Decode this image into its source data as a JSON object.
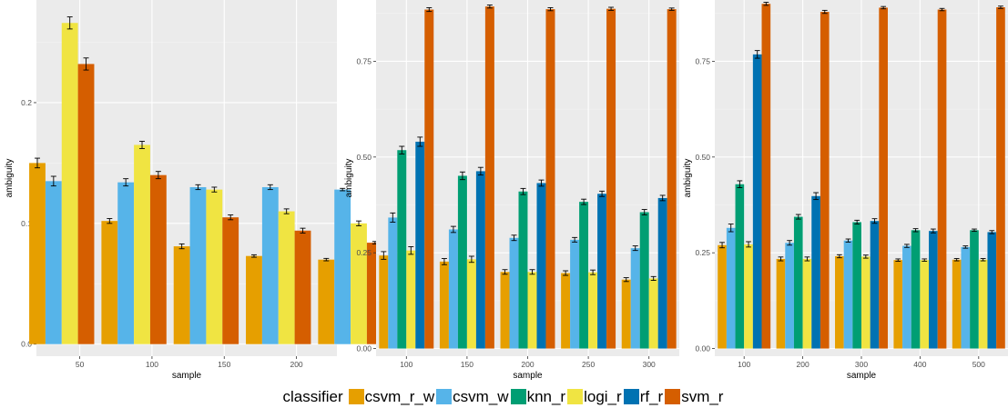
{
  "colors": {
    "csvm_r_w": "#E69F00",
    "csvm_w": "#56B4E9",
    "knn_r": "#009E73",
    "logi_r": "#F0E442",
    "rf_r": "#0072B2",
    "svm_r": "#D55E00"
  },
  "legend": {
    "title": "classifier",
    "items": [
      {
        "key": "csvm_r_w",
        "label": "csvm_r_w"
      },
      {
        "key": "csvm_w",
        "label": "csvm_w"
      },
      {
        "key": "knn_r",
        "label": "knn_r"
      },
      {
        "key": "logi_r",
        "label": "logi_r"
      },
      {
        "key": "rf_r",
        "label": "rf_r"
      },
      {
        "key": "svm_r",
        "label": "svm_r"
      }
    ]
  },
  "chart_data": [
    {
      "type": "bar",
      "xlabel": "sample",
      "ylabel": "ambiguity",
      "ylim": [
        -0.01,
        0.285
      ],
      "yticks": [
        0.0,
        0.1,
        0.2
      ],
      "ytick_labels": [
        "0.0",
        "0.1",
        "0.2"
      ],
      "categories": [
        37,
        62,
        87,
        112,
        137,
        162,
        187,
        212
      ],
      "xlim": [
        20,
        228
      ],
      "xticks": [
        50,
        100,
        150,
        200
      ],
      "grid": true,
      "series": [
        {
          "name": "csvm_r_w",
          "values": [
            0.15,
            0.102,
            0.081,
            0.073,
            0.07
          ],
          "x": [
            37,
            87,
            137,
            187,
            237
          ],
          "err": [
            0.004,
            0.002,
            0.002,
            0.001,
            0.001
          ]
        },
        {
          "name": "csvm_w",
          "values": [
            0.135,
            0.134,
            0.13,
            0.13,
            0.128
          ],
          "x": [
            37,
            87,
            137,
            187,
            237
          ],
          "err": [
            0.004,
            0.003,
            0.002,
            0.002,
            0.001
          ]
        },
        {
          "name": "logi_r",
          "values": [
            0.266,
            0.165,
            0.128,
            0.11,
            0.1
          ],
          "x": [
            37,
            87,
            137,
            187,
            237
          ],
          "err": [
            0.005,
            0.003,
            0.002,
            0.002,
            0.002
          ]
        },
        {
          "name": "svm_r",
          "values": [
            0.232,
            0.14,
            0.105,
            0.094,
            0.084
          ],
          "x": [
            37,
            87,
            137,
            187,
            237
          ],
          "err": [
            0.005,
            0.003,
            0.002,
            0.002,
            0.001
          ]
        }
      ],
      "groups": [
        {
          "x": 50,
          "bars": [
            [
              "csvm_r_w",
              0.15,
              0.004
            ],
            [
              "csvm_w",
              0.135,
              0.004
            ],
            [
              "logi_r",
              0.266,
              0.005
            ],
            [
              "svm_r",
              0.232,
              0.005
            ]
          ]
        },
        {
          "x": 100,
          "bars": [
            [
              "csvm_r_w",
              0.102,
              0.002
            ],
            [
              "csvm_w",
              0.134,
              0.003
            ],
            [
              "logi_r",
              0.165,
              0.003
            ],
            [
              "svm_r",
              0.14,
              0.003
            ]
          ]
        },
        {
          "x": 150,
          "bars": [
            [
              "csvm_r_w",
              0.081,
              0.002
            ],
            [
              "csvm_w",
              0.13,
              0.002
            ],
            [
              "logi_r",
              0.128,
              0.002
            ],
            [
              "svm_r",
              0.105,
              0.002
            ]
          ]
        },
        {
          "x": 200,
          "bars": [
            [
              "csvm_r_w",
              0.073,
              0.001
            ],
            [
              "csvm_w",
              0.13,
              0.002
            ],
            [
              "logi_r",
              0.11,
              0.002
            ],
            [
              "svm_r",
              0.094,
              0.002
            ]
          ]
        },
        {
          "x": 250,
          "bars": [
            [
              "csvm_r_w",
              0.07,
              0.001
            ],
            [
              "csvm_w",
              0.128,
              0.001
            ],
            [
              "logi_r",
              0.1,
              0.002
            ],
            [
              "svm_r",
              0.084,
              0.001
            ]
          ]
        }
      ],
      "group_offset": -12.5
    },
    {
      "type": "bar",
      "xlabel": "sample",
      "ylabel": "ambiguity",
      "ylim": [
        -0.02,
        0.91
      ],
      "yticks": [
        0.0,
        0.25,
        0.5,
        0.75
      ],
      "ytick_labels": [
        "0.00",
        "0.25",
        "0.50",
        "0.75"
      ],
      "xlim": [
        75,
        325
      ],
      "xticks": [
        100,
        150,
        200,
        250,
        300
      ],
      "grid": true,
      "groups": [
        {
          "x": 100,
          "bars": [
            [
              "csvm_r_w",
              0.243,
              0.01
            ],
            [
              "csvm_w",
              0.342,
              0.012
            ],
            [
              "knn_r",
              0.518,
              0.01
            ],
            [
              "logi_r",
              0.256,
              0.01
            ],
            [
              "rf_r",
              0.54,
              0.012
            ],
            [
              "svm_r",
              0.885,
              0.005
            ]
          ]
        },
        {
          "x": 150,
          "bars": [
            [
              "csvm_r_w",
              0.227,
              0.008
            ],
            [
              "csvm_w",
              0.311,
              0.008
            ],
            [
              "knn_r",
              0.451,
              0.01
            ],
            [
              "logi_r",
              0.233,
              0.008
            ],
            [
              "rf_r",
              0.463,
              0.01
            ],
            [
              "svm_r",
              0.893,
              0.004
            ]
          ]
        },
        {
          "x": 200,
          "bars": [
            [
              "csvm_r_w",
              0.2,
              0.006
            ],
            [
              "csvm_w",
              0.289,
              0.007
            ],
            [
              "knn_r",
              0.41,
              0.008
            ],
            [
              "logi_r",
              0.2,
              0.006
            ],
            [
              "rf_r",
              0.432,
              0.008
            ],
            [
              "svm_r",
              0.886,
              0.004
            ]
          ]
        },
        {
          "x": 250,
          "bars": [
            [
              "csvm_r_w",
              0.197,
              0.006
            ],
            [
              "csvm_w",
              0.284,
              0.006
            ],
            [
              "knn_r",
              0.383,
              0.007
            ],
            [
              "logi_r",
              0.199,
              0.006
            ],
            [
              "rf_r",
              0.404,
              0.007
            ],
            [
              "svm_r",
              0.887,
              0.004
            ]
          ]
        },
        {
          "x": 300,
          "bars": [
            [
              "csvm_r_w",
              0.18,
              0.005
            ],
            [
              "csvm_w",
              0.262,
              0.006
            ],
            [
              "knn_r",
              0.356,
              0.007
            ],
            [
              "logi_r",
              0.183,
              0.005
            ],
            [
              "rf_r",
              0.393,
              0.007
            ],
            [
              "svm_r",
              0.886,
              0.003
            ]
          ]
        }
      ],
      "group_offset": 0
    },
    {
      "type": "bar",
      "xlabel": "sample",
      "ylabel": "ambiguity",
      "ylim": [
        -0.02,
        0.91
      ],
      "yticks": [
        0.0,
        0.25,
        0.5,
        0.75
      ],
      "ytick_labels": [
        "0.00",
        "0.25",
        "0.50",
        "0.75"
      ],
      "xlim": [
        50,
        550
      ],
      "xticks": [
        100,
        200,
        300,
        400,
        500
      ],
      "grid": true,
      "groups": [
        {
          "x": 100,
          "bars": [
            [
              "csvm_r_w",
              0.27,
              0.007
            ],
            [
              "csvm_w",
              0.315,
              0.01
            ],
            [
              "knn_r",
              0.429,
              0.009
            ],
            [
              "logi_r",
              0.272,
              0.007
            ],
            [
              "rf_r",
              0.768,
              0.01
            ],
            [
              "svm_r",
              0.9,
              0.004
            ]
          ]
        },
        {
          "x": 200,
          "bars": [
            [
              "csvm_r_w",
              0.234,
              0.005
            ],
            [
              "csvm_w",
              0.276,
              0.006
            ],
            [
              "knn_r",
              0.344,
              0.006
            ],
            [
              "logi_r",
              0.234,
              0.005
            ],
            [
              "rf_r",
              0.398,
              0.009
            ],
            [
              "svm_r",
              0.879,
              0.004
            ]
          ]
        },
        {
          "x": 300,
          "bars": [
            [
              "csvm_r_w",
              0.241,
              0.004
            ],
            [
              "csvm_w",
              0.282,
              0.004
            ],
            [
              "knn_r",
              0.33,
              0.005
            ],
            [
              "logi_r",
              0.24,
              0.004
            ],
            [
              "rf_r",
              0.333,
              0.006
            ],
            [
              "svm_r",
              0.89,
              0.003
            ]
          ]
        },
        {
          "x": 400,
          "bars": [
            [
              "csvm_r_w",
              0.231,
              0.003
            ],
            [
              "csvm_w",
              0.268,
              0.004
            ],
            [
              "knn_r",
              0.309,
              0.004
            ],
            [
              "logi_r",
              0.231,
              0.003
            ],
            [
              "rf_r",
              0.307,
              0.005
            ],
            [
              "svm_r",
              0.885,
              0.003
            ]
          ]
        },
        {
          "x": 500,
          "bars": [
            [
              "csvm_r_w",
              0.232,
              0.003
            ],
            [
              "csvm_w",
              0.265,
              0.003
            ],
            [
              "knn_r",
              0.309,
              0.003
            ],
            [
              "logi_r",
              0.232,
              0.003
            ],
            [
              "rf_r",
              0.304,
              0.004
            ],
            [
              "svm_r",
              0.891,
              0.003
            ]
          ]
        }
      ],
      "group_offset": 0
    }
  ]
}
